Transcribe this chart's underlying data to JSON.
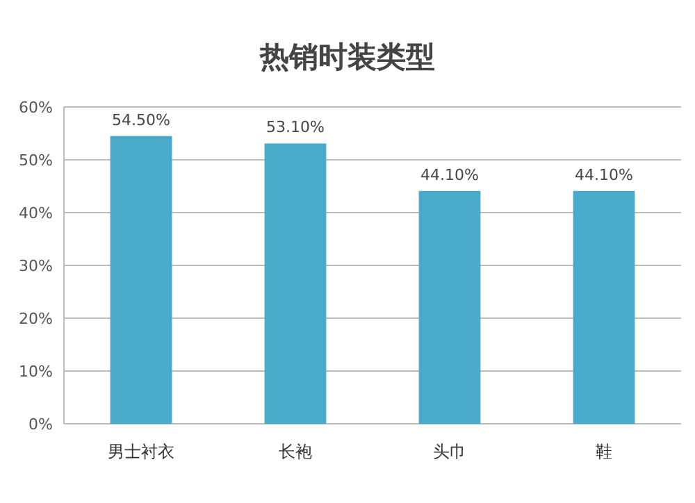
{
  "chart_data": {
    "type": "bar",
    "title": "热销时装类型",
    "categories": [
      "男士衬衣",
      "长袍",
      "头巾",
      "鞋"
    ],
    "values": [
      54.5,
      53.1,
      44.1,
      44.1
    ],
    "value_labels": [
      "54.50%",
      "53.10%",
      "44.10%",
      "44.10%"
    ],
    "color": "#4aaac9",
    "ylim": [
      0,
      60
    ],
    "yticks": [
      {
        "value": 0,
        "label": "0%"
      },
      {
        "value": 10,
        "label": "10%"
      },
      {
        "value": 20,
        "label": "20%"
      },
      {
        "value": 30,
        "label": "30%"
      },
      {
        "value": 40,
        "label": "40%"
      },
      {
        "value": 50,
        "label": "50%"
      },
      {
        "value": 60,
        "label": "60%"
      }
    ],
    "grid": "y"
  }
}
